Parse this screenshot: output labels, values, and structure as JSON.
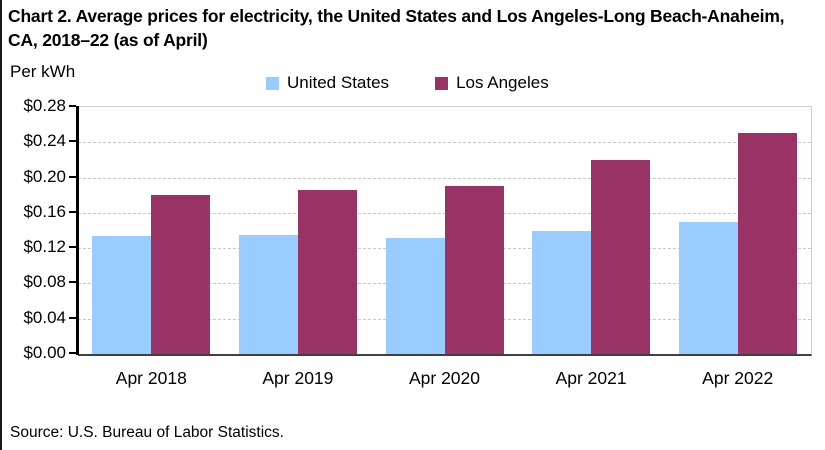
{
  "title": "Chart 2. Average prices for electricity, the United States and Los Angeles-Long Beach-Anaheim, CA, 2018–22 (as of April)",
  "y_axis_unit_label": "Per kWh",
  "source_note": "Source: U.S. Bureau of Labor Statistics.",
  "legend": {
    "items": [
      {
        "label": "United States",
        "color": "#99CCFF"
      },
      {
        "label": "Los Angeles",
        "color": "#993366"
      }
    ]
  },
  "chart_data": {
    "type": "bar",
    "title": "Chart 2. Average prices for electricity, the United States and Los Angeles-Long Beach-Anaheim, CA, 2018–22 (as of April)",
    "ylabel": "Per kWh",
    "categories": [
      "Apr 2018",
      "Apr 2019",
      "Apr 2020",
      "Apr 2021",
      "Apr 2022"
    ],
    "series": [
      {
        "name": "United States",
        "color": "#99CCFF",
        "values": [
          0.134,
          0.135,
          0.132,
          0.139,
          0.15
        ]
      },
      {
        "name": "Los Angeles",
        "color": "#993366",
        "values": [
          0.18,
          0.186,
          0.191,
          0.22,
          0.251
        ]
      }
    ],
    "ylim": [
      0,
      0.28
    ],
    "ytick_step": 0.04,
    "yticks": [
      "$0.00",
      "$0.04",
      "$0.08",
      "$0.12",
      "$0.16",
      "$0.20",
      "$0.24",
      "$0.28"
    ],
    "grid": "horizontal-dashed",
    "legend_position": "top-center"
  }
}
